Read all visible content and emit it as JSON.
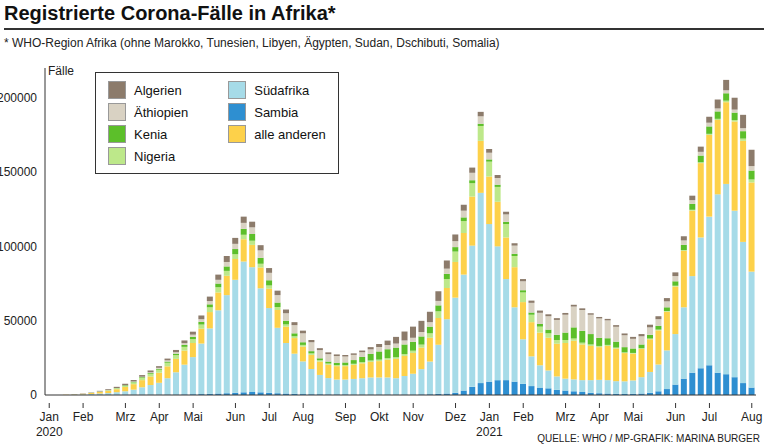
{
  "chart_data": {
    "type": "bar",
    "title": "Registrierte Corona-Fälle in Afrika*",
    "subtitle": "* WHO-Region Afrika (ohne Marokko, Tunesien, Libyen, Ägypten, Sudan, Dschibuti, Somalia)",
    "y_label": "Fälle",
    "annotations": [
      "QUELLE: WHO / MP-GRAFIK: MARINA BURGER"
    ],
    "stacked": true,
    "grid": false,
    "legend": "upper left",
    "ylim": [
      0,
      220000
    ],
    "yticks": [
      0,
      50000,
      100000,
      150000,
      200000
    ],
    "categories": [
      "Jan\n2020",
      null,
      null,
      null,
      "Feb",
      null,
      null,
      null,
      null,
      "Mrz",
      null,
      null,
      null,
      "Apr",
      null,
      null,
      null,
      "Mai",
      null,
      null,
      null,
      null,
      "Jun",
      null,
      null,
      null,
      "Jul",
      null,
      null,
      null,
      "Aug",
      null,
      null,
      null,
      null,
      "Sep",
      null,
      null,
      null,
      "Okt",
      null,
      null,
      null,
      "Nov",
      null,
      null,
      null,
      null,
      "Dez",
      null,
      null,
      null,
      "Jan\n2021",
      null,
      null,
      null,
      "Feb",
      null,
      null,
      null,
      null,
      "Mrz",
      null,
      null,
      null,
      "Apr",
      null,
      null,
      null,
      "Mai",
      null,
      null,
      null,
      null,
      "Jun",
      null,
      null,
      null,
      "Jul",
      null,
      null,
      null,
      null,
      "Aug"
    ],
    "series": [
      {
        "name": "Algerien",
        "color": "#8c7b6b",
        "values": [
          0,
          0,
          100,
          100,
          200,
          200,
          400,
          600,
          800,
          900,
          1000,
          1100,
          1200,
          1100,
          1200,
          1500,
          1800,
          2000,
          2500,
          3000,
          3500,
          4000,
          4000,
          4200,
          3800,
          3500,
          3200,
          3000,
          2500,
          2000,
          1800,
          1500,
          1300,
          1200,
          1100,
          1000,
          1000,
          1100,
          1500,
          2000,
          3000,
          4500,
          6000,
          7500,
          7500,
          7000,
          6500,
          5500,
          4500,
          4000,
          3500,
          3000,
          2500,
          2000,
          1800,
          1600,
          1500,
          1500,
          1500,
          1300,
          1200,
          1200,
          1200,
          1100,
          1000,
          1000,
          1000,
          1100,
          1200,
          1300,
          1500,
          1800,
          2000,
          2200,
          2500,
          2800,
          3000,
          3500,
          4000,
          6000,
          7000,
          8000,
          9000,
          11000
        ]
      },
      {
        "name": "Äthiopien",
        "color": "#d9d2c3",
        "values": [
          0,
          0,
          0,
          0,
          0,
          50,
          50,
          100,
          100,
          100,
          200,
          300,
          500,
          700,
          800,
          1000,
          1200,
          1500,
          1800,
          2200,
          2500,
          3000,
          3500,
          4000,
          4500,
          5000,
          5000,
          5000,
          5000,
          5500,
          6000,
          6000,
          5500,
          5000,
          4500,
          4000,
          3500,
          3200,
          3000,
          3000,
          2800,
          2700,
          2700,
          2700,
          3000,
          3000,
          3000,
          3500,
          4000,
          4500,
          5000,
          5000,
          4500,
          4500,
          5000,
          5500,
          6000,
          6500,
          7500,
          9000,
          10000,
          12000,
          14000,
          14000,
          13000,
          13000,
          12000,
          10000,
          8000,
          6500,
          5500,
          5000,
          4500,
          4000,
          3500,
          3000,
          2500,
          2500,
          2500,
          2000,
          2000,
          2000,
          2000,
          3000
        ]
      },
      {
        "name": "Kenia",
        "color": "#5cbf2a",
        "values": [
          0,
          0,
          0,
          0,
          0,
          50,
          50,
          100,
          200,
          300,
          400,
          500,
          500,
          600,
          800,
          1000,
          1300,
          1500,
          1800,
          2000,
          2500,
          3000,
          3500,
          4000,
          4500,
          4000,
          3500,
          3000,
          2500,
          2000,
          1800,
          1500,
          1300,
          1300,
          1500,
          1800,
          2500,
          3500,
          4500,
          5500,
          6000,
          6500,
          6500,
          6000,
          5500,
          4500,
          4000,
          3500,
          3000,
          2500,
          2000,
          1500,
          1500,
          1500,
          1500,
          1500,
          1500,
          1500,
          1800,
          2500,
          3500,
          5000,
          7500,
          8000,
          7000,
          5500,
          4500,
          4000,
          3500,
          3000,
          2500,
          2500,
          2500,
          2500,
          3000,
          3500,
          4000,
          4500,
          5000,
          5000,
          5000,
          5000,
          5000,
          6000
        ]
      },
      {
        "name": "Nigeria",
        "color": "#bde88a",
        "values": [
          0,
          0,
          0,
          0,
          0,
          100,
          200,
          300,
          500,
          800,
          1200,
          1500,
          1800,
          2000,
          2400,
          2500,
          2500,
          2600,
          2800,
          3200,
          3500,
          3300,
          3200,
          3000,
          2800,
          2500,
          2200,
          2000,
          1500,
          1200,
          1100,
          1000,
          900,
          800,
          800,
          700,
          700,
          800,
          900,
          1000,
          1000,
          1100,
          1200,
          1500,
          2000,
          3000,
          4500,
          6000,
          7000,
          8000,
          9000,
          10000,
          10000,
          10000,
          9000,
          7500,
          6500,
          5000,
          4000,
          3000,
          2500,
          2000,
          1500,
          1200,
          1000,
          800,
          700,
          600,
          500,
          500,
          500,
          500,
          500,
          500,
          500,
          500,
          600,
          600,
          700,
          800,
          1000,
          1000,
          1500,
          2000
        ]
      },
      {
        "name": "Südafrika",
        "color": "#a6dbe8",
        "values": [
          0,
          0,
          0,
          200,
          400,
          700,
          1000,
          1300,
          1800,
          2500,
          3500,
          5000,
          6500,
          8000,
          11000,
          15000,
          20000,
          25000,
          34000,
          44000,
          56000,
          66000,
          76000,
          88000,
          84000,
          70000,
          57000,
          44000,
          34000,
          27000,
          22000,
          17000,
          13000,
          11000,
          10000,
          10000,
          10500,
          11000,
          11500,
          11500,
          11500,
          11000,
          12500,
          14000,
          17000,
          22000,
          33000,
          50000,
          64000,
          78000,
          95000,
          128000,
          106000,
          90000,
          68000,
          50000,
          30000,
          20000,
          15000,
          12000,
          9000,
          8000,
          8000,
          8000,
          8500,
          9000,
          9000,
          8500,
          8500,
          9000,
          11000,
          14000,
          18000,
          26000,
          34000,
          48000,
          65000,
          88000,
          100000,
          120000,
          128000,
          112000,
          95000,
          78000
        ]
      },
      {
        "name": "Sambia",
        "color": "#2e8fd1",
        "values": [
          0,
          0,
          0,
          0,
          0,
          0,
          0,
          0,
          100,
          100,
          100,
          200,
          200,
          200,
          300,
          300,
          400,
          500,
          600,
          800,
          1000,
          1200,
          1500,
          1800,
          2000,
          1800,
          1500,
          1200,
          1000,
          800,
          600,
          500,
          500,
          400,
          400,
          400,
          300,
          300,
          300,
          300,
          300,
          300,
          300,
          300,
          400,
          500,
          800,
          1000,
          1500,
          3000,
          5500,
          8000,
          9000,
          10000,
          10000,
          9000,
          7500,
          6000,
          5000,
          4500,
          3500,
          3000,
          2500,
          2000,
          1500,
          1200,
          1000,
          800,
          700,
          800,
          1000,
          1500,
          2500,
          4000,
          7000,
          11000,
          15000,
          18000,
          20000,
          15000,
          14000,
          12000,
          8000,
          5000
        ]
      },
      {
        "name": "alle anderen",
        "color": "#fdd14a",
        "values": [
          0,
          0,
          100,
          200,
          400,
          700,
          1100,
          1500,
          2000,
          2800,
          3700,
          4800,
          5800,
          6800,
          8000,
          9000,
          9500,
          9500,
          10000,
          11000,
          12000,
          13000,
          14000,
          15000,
          15000,
          14000,
          13000,
          12000,
          11000,
          10500,
          10000,
          9500,
          9000,
          9000,
          9000,
          9000,
          9500,
          10000,
          10500,
          11000,
          12000,
          13000,
          13500,
          14000,
          14500,
          16000,
          18000,
          21000,
          24000,
          28000,
          33000,
          35000,
          32000,
          30000,
          28000,
          27000,
          25000,
          23000,
          22000,
          22000,
          22000,
          24000,
          26000,
          24000,
          23000,
          22000,
          23000,
          22000,
          19000,
          18000,
          19000,
          22000,
          23000,
          26000,
          32000,
          38000,
          44000,
          50000,
          55000,
          50000,
          55000,
          60000,
          68000,
          60000
        ]
      }
    ]
  }
}
